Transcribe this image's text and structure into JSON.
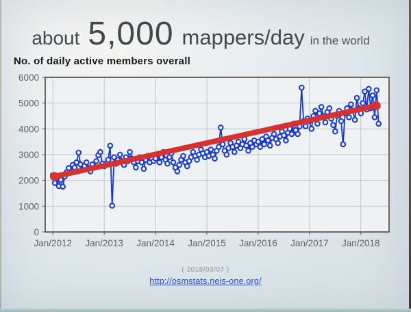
{
  "slide": {
    "title": {
      "prefix": "about",
      "number": "5,000",
      "unit": "mappers/day",
      "suffix": "in the world"
    },
    "subtitle": "No. of daily active members overall",
    "footer": {
      "date": "( 2018/03/07 )",
      "link": "http://osmstats.neis-one.org/"
    }
  },
  "chart_data": {
    "type": "line",
    "title": "No. of daily active members overall",
    "xlabel": "",
    "ylabel": "",
    "xlim": [
      2011.85,
      2018.55
    ],
    "ylim": [
      0,
      6000
    ],
    "y_ticks": [
      0,
      1000,
      2000,
      3000,
      4000,
      5000,
      6000
    ],
    "x_ticks": [
      {
        "value": 2012,
        "label": "Jan/2012"
      },
      {
        "value": 2013,
        "label": "Jan/2013"
      },
      {
        "value": 2014,
        "label": "Jan/2014"
      },
      {
        "value": 2015,
        "label": "Jan/2015"
      },
      {
        "value": 2016,
        "label": "Jan/2016"
      },
      {
        "value": 2017,
        "label": "Jan/2017"
      },
      {
        "value": 2018,
        "label": "Jan/2018"
      }
    ],
    "grid": true,
    "legend": false,
    "colors": {
      "line": "#1838d4",
      "trend": "#d63230",
      "plot_bg": "#eff2f4",
      "grid": "#b9c6ce",
      "frame": "#6e6760",
      "tick_text": "#5c6269"
    },
    "series": [
      {
        "name": "daily active members",
        "style": "line-with-open-circle-markers",
        "color": "#1838d4",
        "x_start": 2012.0,
        "x_step_years": 0.03846,
        "values": [
          2200,
          1900,
          2100,
          1780,
          2020,
          1760,
          2150,
          2320,
          2480,
          2300,
          2600,
          2500,
          2700,
          3080,
          2620,
          2440,
          2560,
          2700,
          2480,
          2350,
          2620,
          2500,
          2750,
          2980,
          3100,
          2650,
          2550,
          2650,
          2800,
          3350,
          1020,
          2900,
          2650,
          2800,
          3000,
          2750,
          2600,
          2900,
          2750,
          3100,
          2850,
          2700,
          2500,
          2750,
          2900,
          2700,
          2450,
          2800,
          2950,
          2700,
          2850,
          2750,
          2850,
          3000,
          2700,
          2900,
          3100,
          2800,
          2650,
          2900,
          3050,
          2700,
          2500,
          2350,
          2600,
          2800,
          2950,
          2700,
          2550,
          2750,
          2900,
          3100,
          2950,
          2800,
          3000,
          3200,
          3050,
          2900,
          3100,
          2950,
          3200,
          3000,
          2850,
          3150,
          3300,
          4050,
          3400,
          3150,
          3000,
          3250,
          3450,
          3300,
          3100,
          3350,
          3500,
          3250,
          3400,
          3600,
          3350,
          3150,
          3450,
          3300,
          3550,
          3400,
          3500,
          3300,
          3600,
          3400,
          3700,
          3550,
          3350,
          3650,
          3800,
          3600,
          3450,
          3700,
          3900,
          3750,
          3550,
          3850,
          4000,
          3800,
          4200,
          3950,
          3800,
          4100,
          5600,
          4300,
          4100,
          4400,
          4300,
          4000,
          4500,
          4700,
          4200,
          4600,
          4850,
          4500,
          4250,
          4650,
          4800,
          4400,
          4150,
          3900,
          4500,
          4700,
          4300,
          3400,
          4600,
          4800,
          4450,
          4950,
          4700,
          4350,
          5200,
          4800,
          4600,
          5000,
          5450,
          4750,
          5550,
          4800,
          5300,
          4450,
          5500,
          4200
        ]
      },
      {
        "name": "trend",
        "style": "thick-line-round-ends",
        "color": "#d63230",
        "x": [
          2012.03,
          2018.3
        ],
        "y": [
          2150,
          4900
        ]
      }
    ]
  }
}
